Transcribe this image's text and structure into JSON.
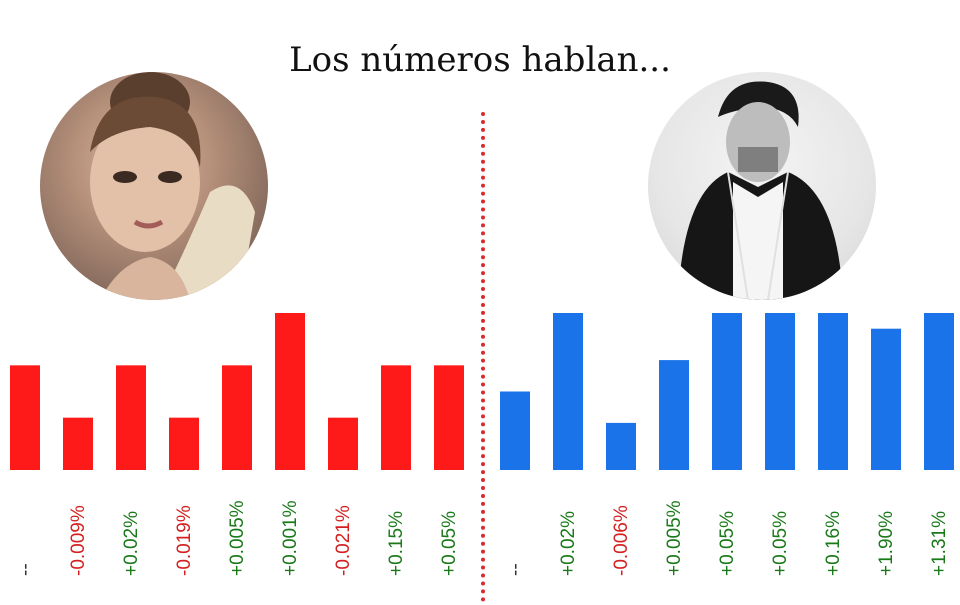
{
  "title": "Los números hablan...",
  "chart_data": [
    {
      "type": "bar",
      "side": "left",
      "color": "#ff1a1a",
      "values": [
        2,
        1,
        2,
        1,
        2,
        3,
        1,
        2,
        2
      ],
      "labels": [
        "--",
        "-0.009%",
        "+0.02%",
        "-0.019%",
        "+0.005%",
        "+0.001%",
        "-0.021%",
        "+0.15%",
        "+0.05%"
      ]
    },
    {
      "type": "bar",
      "side": "right",
      "color": "#1a73e8",
      "values": [
        1.5,
        3,
        0.9,
        2.1,
        3,
        3,
        3,
        2.7,
        3
      ],
      "labels": [
        "--",
        "+0.02%",
        "-0.006%",
        "+0.005%",
        "+0.05%",
        "+0.05%",
        "+0.16%",
        "+1.90%",
        "+1.31%"
      ]
    }
  ],
  "colors": {
    "positive": "#1a7a1a",
    "negative": "#d42020",
    "neutral": "#333333"
  }
}
